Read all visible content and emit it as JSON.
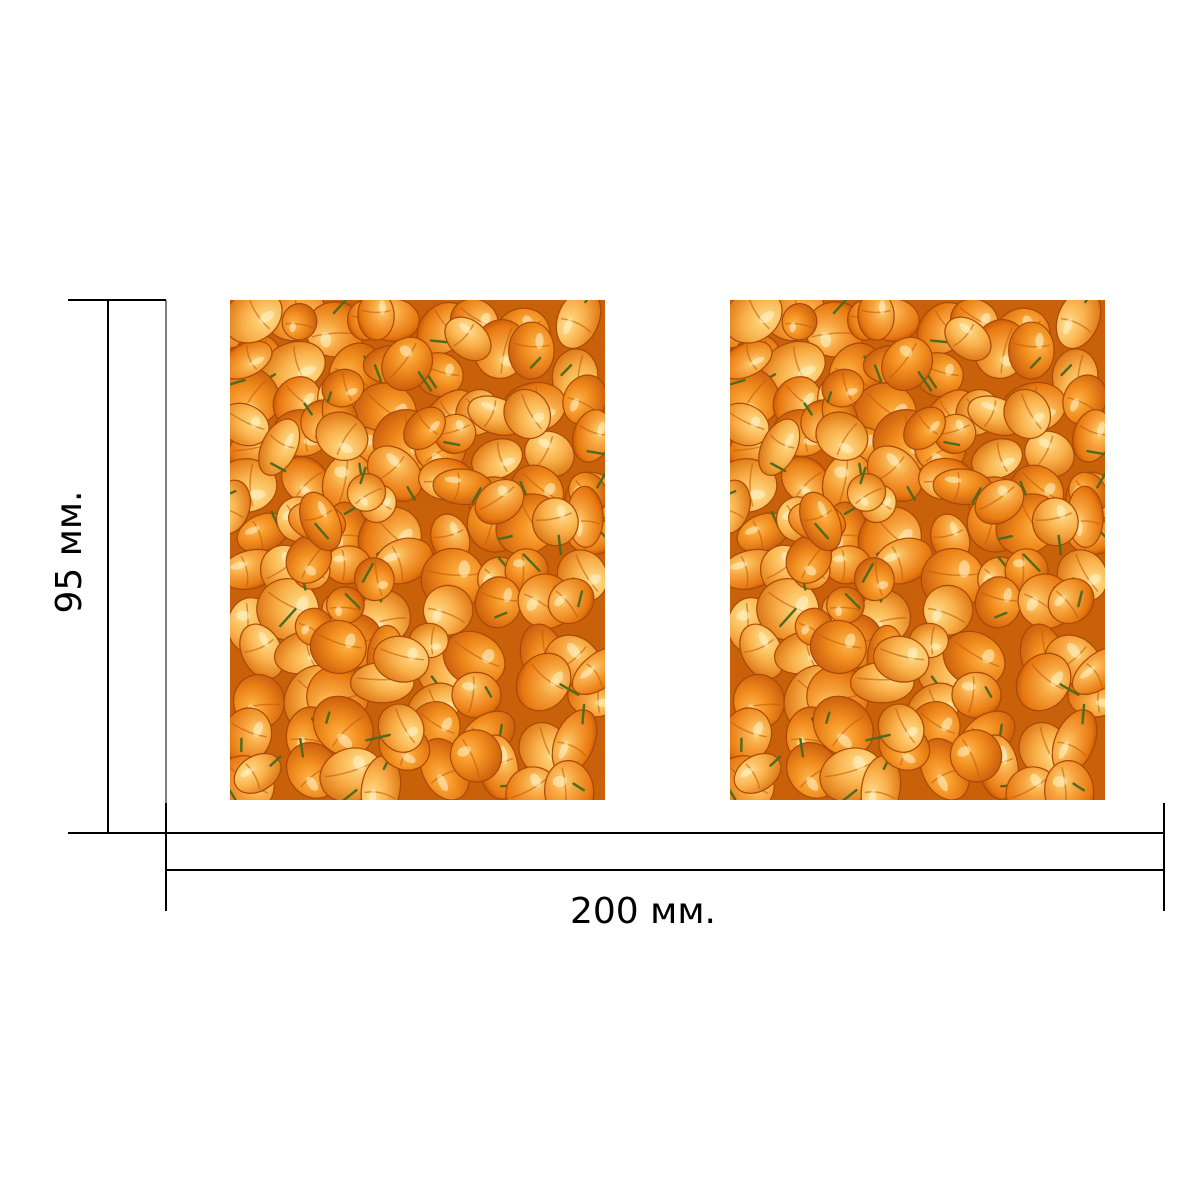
{
  "dimensions": {
    "height_label": "95 мм.",
    "width_label": "200 мм."
  },
  "photos": [
    {
      "subject": "orange-habanero-peppers"
    },
    {
      "subject": "orange-habanero-peppers"
    }
  ],
  "colors": {
    "background": "#ffffff",
    "line": "#000000",
    "pepper_base": "#e8780f",
    "pepper_light": "#f7a540",
    "pepper_dark": "#c85a05",
    "pepper_highlight": "#fcd77a",
    "stem": "#4d6b1e"
  }
}
